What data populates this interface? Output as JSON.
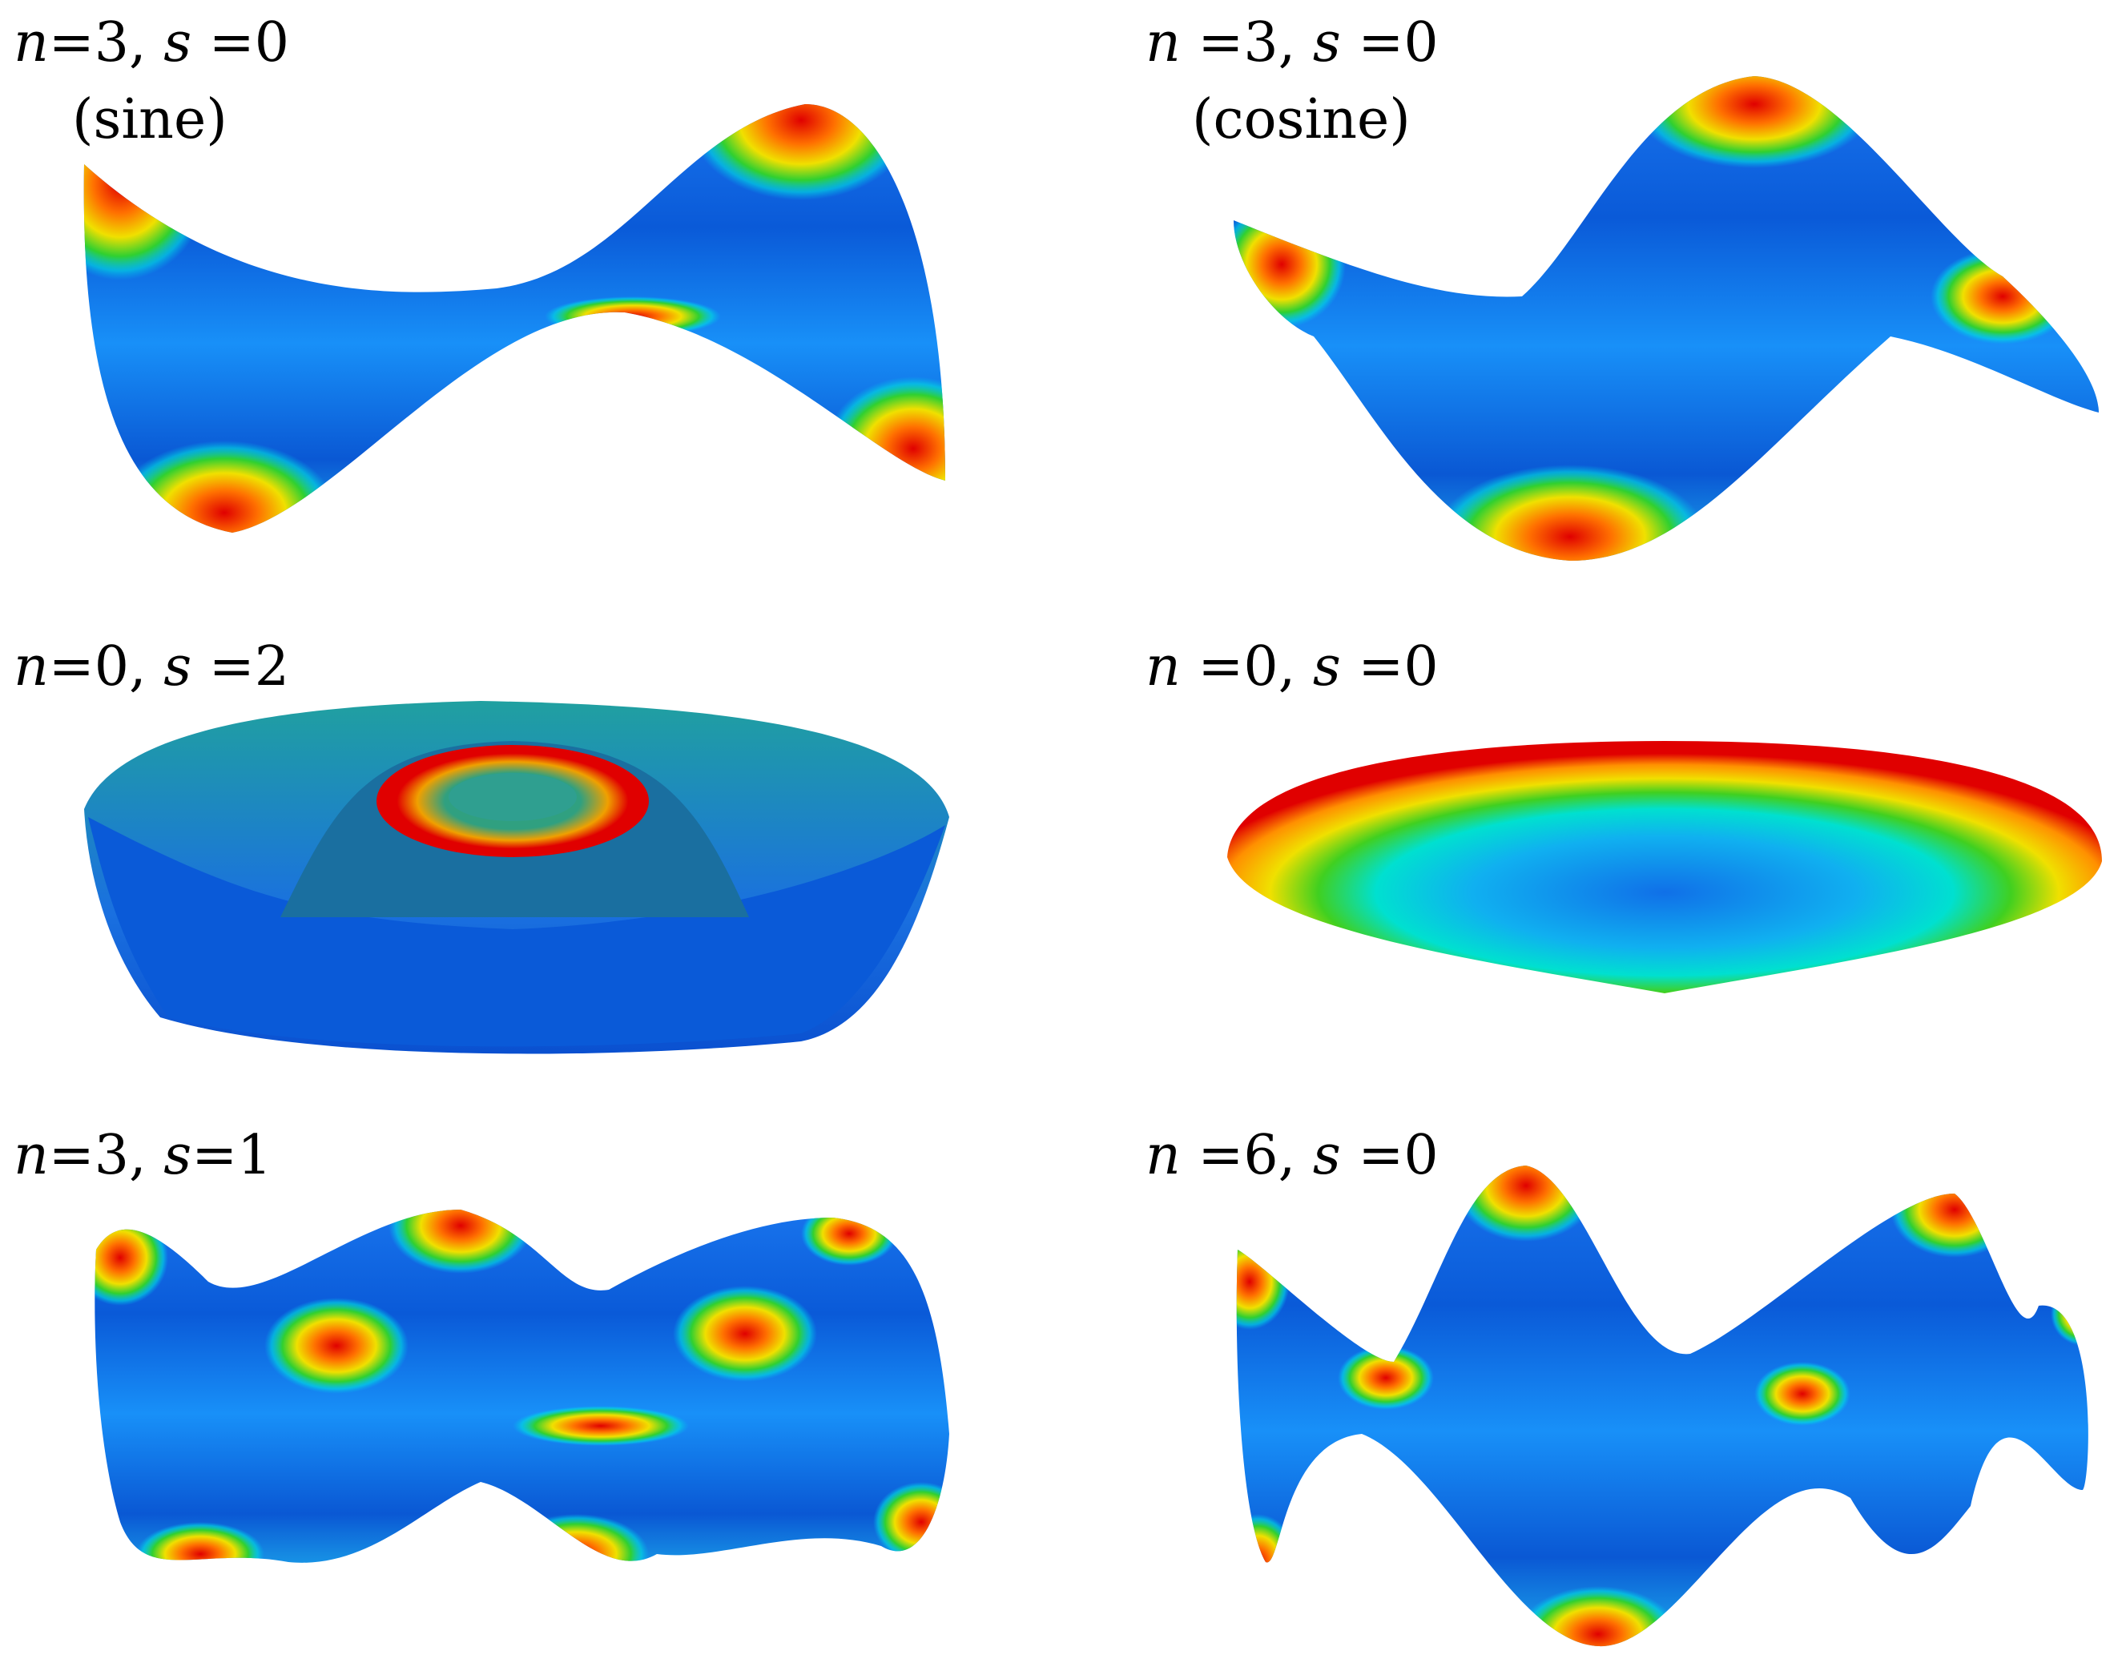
{
  "figure": {
    "panels": [
      {
        "label": "n=3, s=0",
        "n": "3",
        "s": "0",
        "sublabel": "(sine)"
      },
      {
        "label": "n=3, s=0",
        "n": "3",
        "s": "0",
        "sublabel": "(cosine)"
      },
      {
        "label": "n=0, s=2",
        "n": "0",
        "s": "2",
        "sublabel": ""
      },
      {
        "label": "n=0, s=0",
        "n": "0",
        "s": "0",
        "sublabel": ""
      },
      {
        "label": "n=3, s=1",
        "n": "3",
        "s": "1",
        "sublabel": ""
      },
      {
        "label": "n=6, s=0",
        "n": "6",
        "s": "0",
        "sublabel": ""
      }
    ],
    "colormap": [
      "#0040d0",
      "#0090ff",
      "#00e0e0",
      "#20d020",
      "#f0e000",
      "#ff8000",
      "#e00000"
    ]
  }
}
